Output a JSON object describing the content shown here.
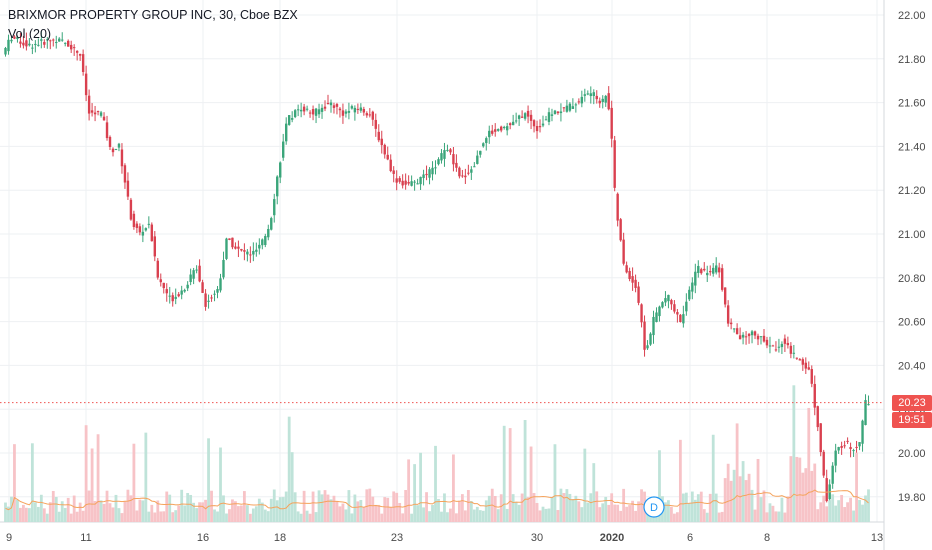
{
  "header": {
    "symbol_title": "BRIXMOR PROPERTY GROUP INC, 30, Cboe BZX",
    "volume_label": "Vol (20)"
  },
  "price_tag": {
    "last": "20.23",
    "countdown": "19:51"
  },
  "colors": {
    "up": "#26a69a",
    "down": "#ef5350",
    "up_body": "#3aa57a",
    "down_body": "#d9404f",
    "vol_up": "#bfe3d9",
    "vol_down": "#f7c3c7",
    "vol_ma": "#f5a35c",
    "grid": "#eef0f3",
    "price_line": "#ef5350"
  },
  "event_marker": {
    "label": "D"
  },
  "chart_data": {
    "type": "candlestick",
    "title": "BRIXMOR PROPERTY GROUP INC, 30, Cboe BZX",
    "interval": "30",
    "exchange": "Cboe BZX",
    "ylim": [
      19.66,
      22.04
    ],
    "y_ticks": [
      "22.00",
      "21.80",
      "21.60",
      "21.40",
      "21.20",
      "21.00",
      "20.80",
      "20.60",
      "20.40",
      "20.20",
      "20.00",
      "19.80"
    ],
    "x_ticks": [
      "9",
      "11",
      "16",
      "18",
      "23",
      "30",
      "2020",
      "6",
      "8",
      "13"
    ],
    "last_price": 20.23,
    "price_path": [
      [
        0,
        21.82
      ],
      [
        0.01,
        21.9
      ],
      [
        0.03,
        21.86
      ],
      [
        0.06,
        21.89
      ],
      [
        0.075,
        21.87
      ],
      [
        0.09,
        21.82
      ],
      [
        0.1,
        21.55
      ],
      [
        0.115,
        21.55
      ],
      [
        0.125,
        21.38
      ],
      [
        0.135,
        21.4
      ],
      [
        0.15,
        21.05
      ],
      [
        0.16,
        21.0
      ],
      [
        0.17,
        21.05
      ],
      [
        0.18,
        20.8
      ],
      [
        0.195,
        20.7
      ],
      [
        0.21,
        20.75
      ],
      [
        0.225,
        20.85
      ],
      [
        0.235,
        20.68
      ],
      [
        0.25,
        20.75
      ],
      [
        0.26,
        20.98
      ],
      [
        0.275,
        20.92
      ],
      [
        0.29,
        20.91
      ],
      [
        0.3,
        20.95
      ],
      [
        0.31,
        21.05
      ],
      [
        0.32,
        21.3
      ],
      [
        0.33,
        21.52
      ],
      [
        0.345,
        21.58
      ],
      [
        0.36,
        21.55
      ],
      [
        0.38,
        21.6
      ],
      [
        0.395,
        21.55
      ],
      [
        0.41,
        21.58
      ],
      [
        0.425,
        21.55
      ],
      [
        0.44,
        21.4
      ],
      [
        0.455,
        21.25
      ],
      [
        0.47,
        21.22
      ],
      [
        0.485,
        21.25
      ],
      [
        0.5,
        21.3
      ],
      [
        0.515,
        21.4
      ],
      [
        0.53,
        21.25
      ],
      [
        0.545,
        21.3
      ],
      [
        0.56,
        21.45
      ],
      [
        0.575,
        21.48
      ],
      [
        0.59,
        21.5
      ],
      [
        0.605,
        21.55
      ],
      [
        0.62,
        21.48
      ],
      [
        0.635,
        21.55
      ],
      [
        0.65,
        21.57
      ],
      [
        0.665,
        21.6
      ],
      [
        0.68,
        21.65
      ],
      [
        0.695,
        21.6
      ],
      [
        0.7,
        21.65
      ],
      [
        0.705,
        21.5
      ],
      [
        0.71,
        21.15
      ],
      [
        0.72,
        20.85
      ],
      [
        0.735,
        20.75
      ],
      [
        0.745,
        20.45
      ],
      [
        0.755,
        20.62
      ],
      [
        0.77,
        20.72
      ],
      [
        0.785,
        20.6
      ],
      [
        0.795,
        20.72
      ],
      [
        0.805,
        20.85
      ],
      [
        0.815,
        20.82
      ],
      [
        0.83,
        20.85
      ],
      [
        0.84,
        20.6
      ],
      [
        0.855,
        20.52
      ],
      [
        0.87,
        20.55
      ],
      [
        0.885,
        20.5
      ],
      [
        0.895,
        20.47
      ],
      [
        0.905,
        20.52
      ],
      [
        0.915,
        20.45
      ],
      [
        0.925,
        20.42
      ],
      [
        0.935,
        20.38
      ],
      [
        0.945,
        20.12
      ],
      [
        0.955,
        19.78
      ],
      [
        0.965,
        20.0
      ],
      [
        0.975,
        20.05
      ],
      [
        0.985,
        20.02
      ],
      [
        0.993,
        20.05
      ],
      [
        1.0,
        20.23
      ]
    ]
  }
}
